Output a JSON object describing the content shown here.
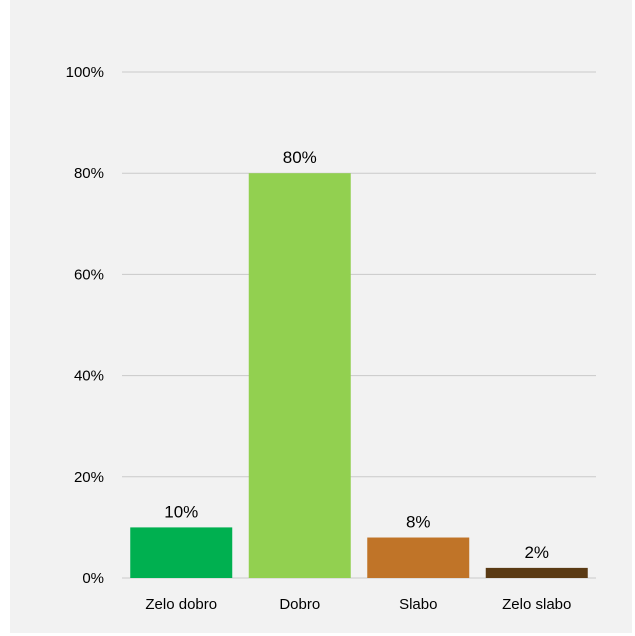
{
  "chart_data": {
    "type": "bar",
    "title": "",
    "xlabel": "",
    "ylabel": "",
    "categories": [
      "Zelo dobro",
      "Dobro",
      "Slabo",
      "Zelo slabo"
    ],
    "values": [
      10,
      80,
      8,
      2
    ],
    "data_labels": [
      "10%",
      "80%",
      "8%",
      "2%"
    ],
    "bar_colors": [
      "#00b050",
      "#92d050",
      "#c07428",
      "#5a3a14"
    ],
    "ylim": [
      0,
      100
    ],
    "yticks": [
      0,
      20,
      40,
      60,
      80,
      100
    ],
    "ytick_labels": [
      "0%",
      "20%",
      "40%",
      "60%",
      "80%",
      "100%"
    ],
    "grid": true,
    "legend": "none"
  }
}
